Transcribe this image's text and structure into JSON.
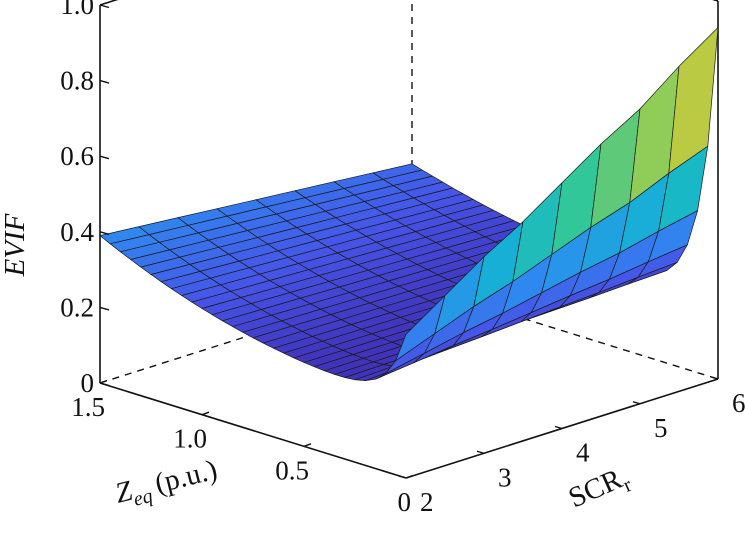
{
  "chart_data": {
    "type": "surface",
    "title": "",
    "zlabel": "EVIF",
    "xlabel": {
      "main": "Z",
      "sub": "eq",
      "units": "(p.u.)"
    },
    "ylabel": {
      "main": "SCR",
      "sub": "r"
    },
    "x_axis": {
      "name": "Zeq (p.u.)",
      "range": [
        0,
        1.5
      ],
      "ticks": [
        0,
        0.5,
        1.0,
        1.5
      ],
      "tick_labels": [
        "0",
        "0.5",
        "1.0",
        "1.5"
      ]
    },
    "y_axis": {
      "name": "SCRr",
      "range": [
        2,
        6
      ],
      "ticks": [
        2,
        3,
        4,
        5,
        6
      ],
      "tick_labels": [
        "2",
        "3",
        "4",
        "5",
        "6"
      ]
    },
    "z_axis": {
      "name": "EVIF",
      "range": [
        0,
        1.0
      ],
      "ticks": [
        0,
        0.2,
        0.4,
        0.6,
        0.8,
        1.0
      ],
      "tick_labels": [
        "0",
        "0.2",
        "0.4",
        "0.6",
        "0.8",
        "1.0"
      ]
    },
    "zeq_grid": [
      0,
      0.05,
      0.1,
      0.15,
      0.2,
      0.25,
      0.3,
      0.35,
      0.4,
      0.45,
      0.5,
      0.55,
      0.6,
      0.65,
      0.7,
      0.75,
      0.8,
      0.85,
      0.9,
      0.95,
      1.0,
      1.05,
      1.1,
      1.15,
      1.2,
      1.25,
      1.3,
      1.35,
      1.4,
      1.45,
      1.5
    ],
    "scr_grid": [
      2,
      2.5,
      3,
      3.5,
      4,
      4.5,
      5,
      5.5,
      6
    ],
    "evif_at_zeq0": [
      0.38,
      0.45,
      0.52,
      0.58,
      0.65,
      0.72,
      0.78,
      0.86,
      0.93
    ],
    "evif_at_zeq_1.5": 0.39,
    "colormap": "parula"
  }
}
